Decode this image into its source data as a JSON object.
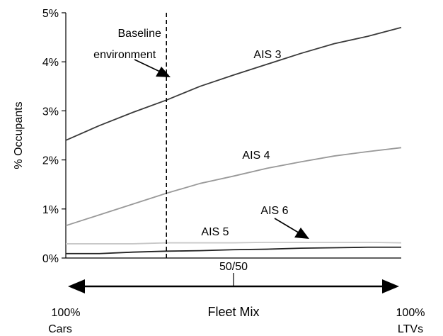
{
  "chart_data": {
    "type": "line",
    "ylabel": "% Occupants",
    "ylim": [
      0,
      5
    ],
    "y_ticks": [
      "0%",
      "1%",
      "2%",
      "3%",
      "4%",
      "5%"
    ],
    "y_tick_values": [
      0,
      1,
      2,
      3,
      4,
      5
    ],
    "xlim": [
      0,
      100
    ],
    "x": [
      0,
      10,
      20,
      30,
      40,
      50,
      60,
      70,
      80,
      90,
      100
    ],
    "series": [
      {
        "name": "AIS 3",
        "color": "#3a3a3a",
        "values": [
          2.4,
          2.7,
          2.97,
          3.22,
          3.5,
          3.73,
          3.95,
          4.17,
          4.37,
          4.52,
          4.7
        ]
      },
      {
        "name": "AIS 4",
        "color": "#999999",
        "values": [
          0.66,
          0.88,
          1.1,
          1.32,
          1.52,
          1.67,
          1.83,
          1.96,
          2.08,
          2.17,
          2.25
        ]
      },
      {
        "name": "AIS 5",
        "color": "#c8c8c8",
        "values": [
          0.29,
          0.29,
          0.29,
          0.31,
          0.31,
          0.31,
          0.32,
          0.32,
          0.32,
          0.32,
          0.31
        ]
      },
      {
        "name": "AIS 6",
        "color": "#222222",
        "values": [
          0.09,
          0.09,
          0.12,
          0.14,
          0.15,
          0.17,
          0.18,
          0.2,
          0.21,
          0.22,
          0.22
        ]
      }
    ],
    "baseline": {
      "x": 30,
      "label_line1": "Baseline",
      "label_line2": "environment"
    },
    "fleet_mix": {
      "title": "Fleet Mix",
      "midpoint_label": "50/50",
      "left_label_line1": "100%",
      "left_label_line2": "Cars",
      "right_label_line1": "100%",
      "right_label_line2": "LTVs"
    },
    "grid": false
  }
}
